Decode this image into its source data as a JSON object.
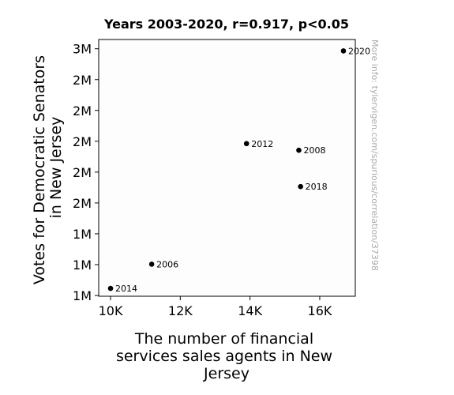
{
  "chart_data": {
    "type": "scatter",
    "title": "Years 2003-2020, r=0.917, p<0.05",
    "xlabel_lines": [
      "The number of financial",
      "services sales agents in New",
      "Jersey"
    ],
    "ylabel_lines": [
      "Votes for Democratic Senators",
      "in New Jersey"
    ],
    "x_ticks": [
      {
        "value": 10000,
        "label": "10K"
      },
      {
        "value": 12000,
        "label": "12K"
      },
      {
        "value": 14000,
        "label": "14K"
      },
      {
        "value": 16000,
        "label": "16K"
      }
    ],
    "y_ticks": [
      {
        "value": 900000,
        "label": "1M"
      },
      {
        "value": 1100000,
        "label": "1M"
      },
      {
        "value": 1300000,
        "label": "1M"
      },
      {
        "value": 1500000,
        "label": "2M"
      },
      {
        "value": 1700000,
        "label": "2M"
      },
      {
        "value": 1900000,
        "label": "2M"
      },
      {
        "value": 2100000,
        "label": "2M"
      },
      {
        "value": 2300000,
        "label": "2M"
      },
      {
        "value": 2500000,
        "label": "3M"
      }
    ],
    "xlim": [
      9660,
      17020
    ],
    "ylim": [
      895000,
      2560000
    ],
    "points": [
      {
        "year": "2014",
        "x": 10000,
        "y": 946000
      },
      {
        "year": "2006",
        "x": 11180,
        "y": 1103000
      },
      {
        "year": "2012",
        "x": 13900,
        "y": 1885000
      },
      {
        "year": "2008",
        "x": 15400,
        "y": 1842000
      },
      {
        "year": "2018",
        "x": 15450,
        "y": 1606000
      },
      {
        "year": "2020",
        "x": 16680,
        "y": 2486000
      }
    ],
    "grid": false,
    "marker_color": "#000000"
  },
  "watermark": "More info: tylervigen.com/spurious/correlation/37398"
}
